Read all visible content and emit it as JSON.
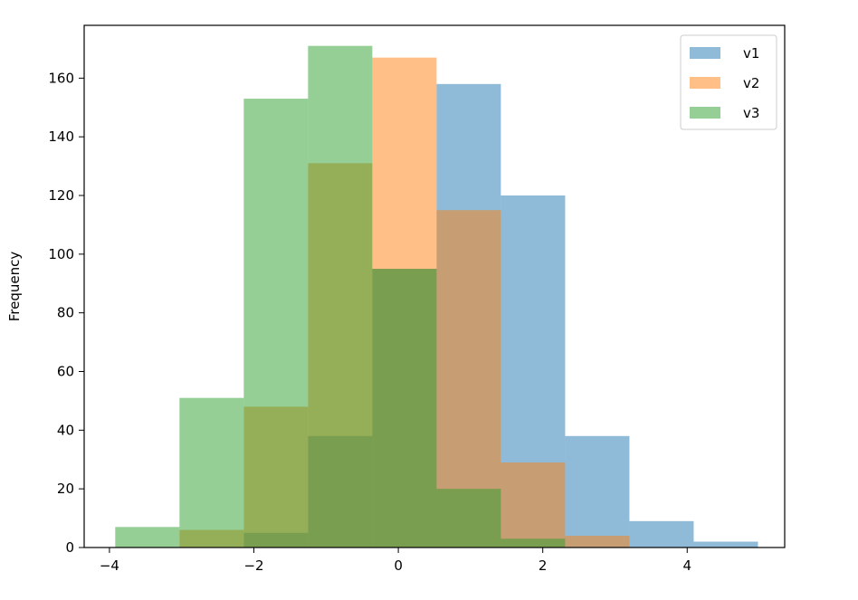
{
  "chart_data": {
    "type": "bar",
    "title": "",
    "xlabel": "",
    "ylabel": "Frequency",
    "xlim": [
      -4.35,
      5.35
    ],
    "ylim": [
      0,
      178
    ],
    "xticks": [
      -4,
      -2,
      0,
      2,
      4
    ],
    "yticks": [
      0,
      20,
      40,
      60,
      80,
      100,
      120,
      140,
      160
    ],
    "xtick_labels": [
      "−4",
      "−2",
      "0",
      "2",
      "4"
    ],
    "ytick_labels": [
      "0",
      "20",
      "40",
      "60",
      "80",
      "100",
      "120",
      "140",
      "160"
    ],
    "legend_position": "top-right",
    "grid": false,
    "bin_edges": [
      -3.92,
      -3.03,
      -2.14,
      -1.25,
      -0.36,
      0.53,
      1.42,
      2.31,
      3.2,
      4.09,
      4.98
    ],
    "series": [
      {
        "name": "v1",
        "color": "#1f77b4",
        "values": [
          0,
          0,
          5,
          38,
          95,
          158,
          120,
          38,
          9,
          2
        ]
      },
      {
        "name": "v2",
        "color": "#ff7f0e",
        "values": [
          0,
          6,
          48,
          131,
          167,
          115,
          29,
          4,
          0,
          0
        ]
      },
      {
        "name": "v3",
        "color": "#2ca02c",
        "values": [
          7,
          51,
          153,
          171,
          95,
          20,
          3,
          0,
          0,
          0
        ]
      }
    ],
    "opacity": 0.5
  }
}
